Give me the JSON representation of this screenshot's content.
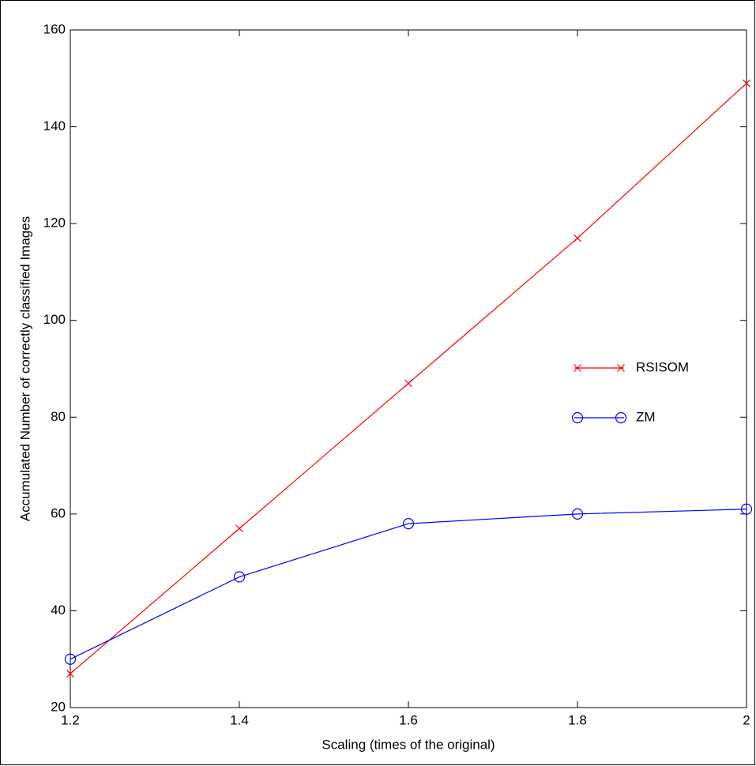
{
  "chart_data": {
    "type": "line",
    "x_label": "Scaling (times of the original)",
    "y_label": "Accumulated Number of correctly classified Images",
    "x": [
      1.2,
      1.4,
      1.6,
      1.8,
      2
    ],
    "series": [
      {
        "name": "RSISOM",
        "color": "#ff0000",
        "marker": "x",
        "values": [
          27,
          57,
          87,
          117,
          149
        ]
      },
      {
        "name": "ZM",
        "color": "#0000ff",
        "marker": "o",
        "values": [
          30,
          47,
          58,
          60,
          61
        ]
      }
    ],
    "xlim": [
      1.2,
      2
    ],
    "xticks": [
      1.2,
      1.4,
      1.6,
      1.8,
      2
    ],
    "ylim": [
      20,
      160
    ],
    "yticks": [
      20,
      40,
      60,
      80,
      100,
      120,
      140,
      160
    ],
    "grid": false
  }
}
